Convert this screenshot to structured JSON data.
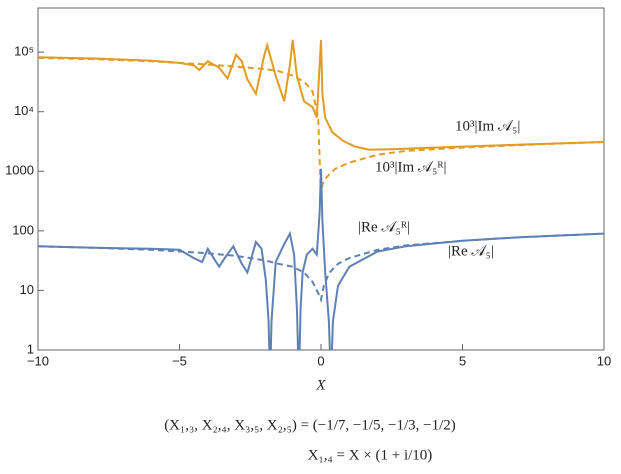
{
  "chart_data": {
    "type": "line",
    "x_label": "X",
    "xlim": [
      -10,
      10
    ],
    "ylim": [
      1,
      550000
    ],
    "log_y": true,
    "xticks": [
      {
        "value": -10,
        "label": "−10"
      },
      {
        "value": -5,
        "label": "−5"
      },
      0,
      5,
      10
    ],
    "yticks": [
      1,
      10,
      100,
      1000,
      {
        "value": 10000,
        "label": "10⁴"
      },
      {
        "value": 100000,
        "label": "10⁵"
      }
    ],
    "series": [
      {
        "color": "#e19c24",
        "dashed": false,
        "x": [
          -10,
          -8,
          -6,
          -5,
          -4.5,
          -4.3,
          -4.0,
          -3.6,
          -3.3,
          -3.0,
          -2.8,
          -2.6,
          -2.3,
          -2.0,
          -1.9,
          -1.6,
          -1.3,
          -1.1,
          -1.0,
          -0.85,
          -0.6,
          -0.3,
          -0.15,
          -0.05,
          0,
          0.05,
          0.15,
          0.4,
          0.8,
          1.2,
          1.7,
          2.5,
          4,
          6,
          8,
          10
        ],
        "values": [
          82000,
          78000,
          72000,
          66000,
          60000,
          50000,
          70000,
          55000,
          36000,
          90000,
          70000,
          35000,
          20000,
          90000,
          130000,
          40000,
          15000,
          60000,
          160000,
          40000,
          15000,
          12000,
          8000,
          60000,
          160000,
          20000,
          8000,
          4500,
          3200,
          2600,
          2300,
          2350,
          2500,
          2700,
          2900,
          3100
        ]
      },
      {
        "color": "#e19c24",
        "dashed": true,
        "x": [
          -10,
          -8,
          -6,
          -5,
          -4,
          -3,
          -2,
          -1.5,
          -1,
          -0.6,
          -0.3,
          -0.1,
          0,
          0.05,
          0.2,
          0.5,
          1,
          2,
          3,
          5,
          7,
          10
        ],
        "values": [
          80000,
          76000,
          70000,
          66000,
          62000,
          57000,
          52000,
          48000,
          40000,
          32000,
          22000,
          8000,
          350,
          600,
          800,
          1100,
          1400,
          1900,
          2200,
          2500,
          2750,
          3100
        ]
      },
      {
        "color": "#5e81b5",
        "dashed": false,
        "x": [
          -10,
          -8,
          -6,
          -5,
          -4.5,
          -4.2,
          -4.0,
          -3.6,
          -3.4,
          -3.1,
          -2.8,
          -2.6,
          -2.3,
          -2.1,
          -1.95,
          -1.85,
          -1.8,
          -1.75,
          -1.6,
          -1.3,
          -1.1,
          -0.95,
          -0.85,
          -0.78,
          -0.72,
          -0.65,
          -0.5,
          -0.3,
          -0.15,
          -0.05,
          0,
          0.05,
          0.15,
          0.28,
          0.35,
          0.42,
          0.6,
          1,
          2,
          3,
          5,
          7,
          10
        ],
        "values": [
          55,
          52,
          50,
          48,
          35,
          30,
          50,
          25,
          35,
          55,
          28,
          20,
          65,
          50,
          15,
          3,
          0.3,
          3,
          30,
          60,
          90,
          40,
          5,
          0.3,
          5,
          20,
          40,
          50,
          40,
          200,
          1100,
          150,
          20,
          3,
          0.3,
          3,
          12,
          25,
          45,
          55,
          68,
          78,
          90
        ]
      },
      {
        "color": "#5e81b5",
        "dashed": true,
        "x": [
          -10,
          -8,
          -6,
          -5,
          -4,
          -3,
          -2,
          -1.5,
          -1,
          -0.6,
          -0.3,
          -0.1,
          0,
          0.1,
          0.3,
          0.6,
          1,
          2,
          3,
          5,
          7,
          10
        ],
        "values": [
          55,
          52,
          48,
          45,
          42,
          38,
          32,
          28,
          25,
          20,
          14,
          9,
          7,
          12,
          20,
          28,
          35,
          48,
          57,
          68,
          78,
          90
        ]
      }
    ],
    "annotations": [
      "10³|Im 𝒜₅|",
      "10³|Im 𝒜₅ᴿ|",
      "|Re 𝒜₅ᴿ|",
      "|Re 𝒜₅|"
    ],
    "caption": [
      "(X₁,₃, X₂,₄, X₃,₅, X₂,₅) = (−1/7, −1/5, −1/3, −1/2)",
      "X₁,₄ = X × (1 + i/10)"
    ]
  }
}
